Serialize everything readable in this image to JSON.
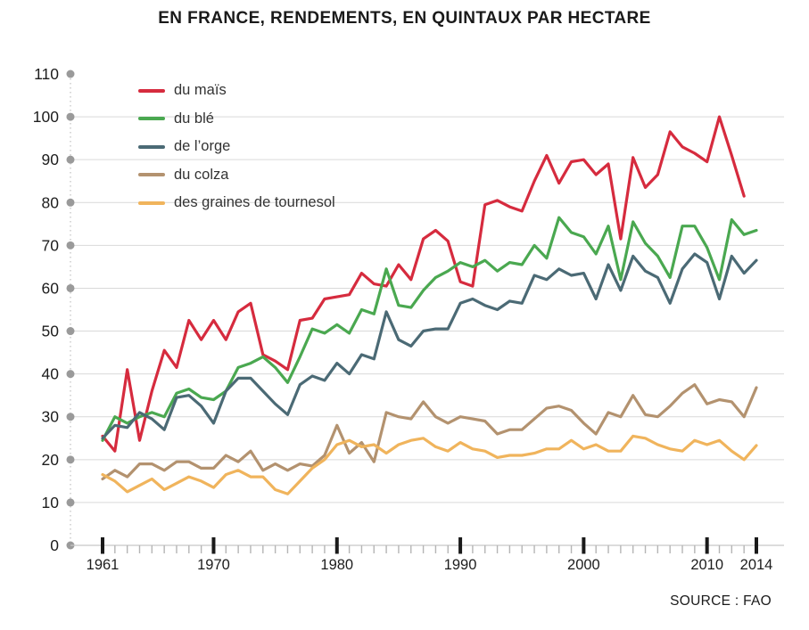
{
  "title": "EN FRANCE, RENDEMENTS, EN QUINTAUX PAR HECTARE",
  "source": "SOURCE : FAO",
  "colors": {
    "grid": "#d9d9d9",
    "axis_dot": "#9a9a9a",
    "axis_dotted_line": "#b3b3b3",
    "x_axis_line": "#c8c8c8",
    "minor_tick": "#b5b5b5",
    "major_tick": "#1a1a1a",
    "tick_label": "#1d1d1d"
  },
  "chart_data": {
    "type": "line",
    "title": "EN FRANCE, RENDEMENTS, EN QUINTAUX PAR HECTARE",
    "xlabel": "",
    "ylabel": "quintaux par hectare",
    "x_range": [
      1961,
      2014
    ],
    "x_labeled_ticks": [
      1961,
      1970,
      1980,
      1990,
      2000,
      2010,
      2014
    ],
    "y_axis": {
      "min": 0,
      "max": 110,
      "step": 10
    },
    "y_ticks": [
      0,
      10,
      20,
      30,
      40,
      50,
      60,
      70,
      80,
      90,
      100,
      110
    ],
    "grid": "horizontal",
    "legend_position": "top-left",
    "x": [
      1961,
      1962,
      1963,
      1964,
      1965,
      1966,
      1967,
      1968,
      1969,
      1970,
      1971,
      1972,
      1973,
      1974,
      1975,
      1976,
      1977,
      1978,
      1979,
      1980,
      1981,
      1982,
      1983,
      1984,
      1985,
      1986,
      1987,
      1988,
      1989,
      1990,
      1991,
      1992,
      1993,
      1994,
      1995,
      1996,
      1997,
      1998,
      1999,
      2000,
      2001,
      2002,
      2003,
      2004,
      2005,
      2006,
      2007,
      2008,
      2009,
      2010,
      2011,
      2012,
      2013,
      2014
    ],
    "series": [
      {
        "name": "du maïs",
        "color": "#d62b3e",
        "values": [
          25.5,
          22,
          41,
          24.5,
          36,
          45.5,
          41.5,
          52.5,
          48,
          52.5,
          48,
          54.5,
          56.5,
          44.5,
          43,
          41,
          52.5,
          53,
          57.5,
          58,
          58.5,
          63.5,
          61,
          60.5,
          65.5,
          62,
          71.5,
          73.5,
          71,
          61.5,
          60.5,
          79.5,
          80.5,
          79,
          78,
          85,
          91,
          84.5,
          89.5,
          90,
          86.5,
          89,
          71.5,
          90.5,
          83.5,
          86.5,
          96.5,
          93,
          91.5,
          89.5,
          100,
          91,
          81.5,
          null
        ]
      },
      {
        "name": "du blé",
        "color": "#4aa850",
        "values": [
          24.5,
          30,
          28.5,
          30,
          31,
          30,
          35.5,
          36.5,
          34.5,
          34,
          36,
          41.5,
          42.5,
          44,
          41.5,
          38,
          44,
          50.5,
          49.5,
          51.5,
          49.5,
          55,
          54,
          64.5,
          56,
          55.5,
          59.5,
          62.5,
          64,
          66,
          65,
          66.5,
          64,
          66,
          65.5,
          70,
          67,
          76.5,
          73,
          72,
          68,
          74.5,
          62,
          75.5,
          70.5,
          67.5,
          62.5,
          74.5,
          74.5,
          69.5,
          62,
          76,
          72.5,
          73.5
        ]
      },
      {
        "name": "de l’orge",
        "color": "#4b6a75",
        "values": [
          25,
          28,
          27.5,
          31,
          29.5,
          27,
          34.5,
          35,
          32.5,
          28.5,
          36,
          39,
          39,
          36,
          33,
          30.5,
          37.5,
          39.5,
          38.5,
          42.5,
          40,
          44.5,
          43.5,
          54.5,
          48,
          46.5,
          50,
          50.5,
          50.5,
          56.5,
          57.5,
          56,
          55,
          57,
          56.5,
          63,
          62,
          64.5,
          63,
          63.5,
          57.5,
          65.5,
          59.5,
          67.5,
          64,
          62.5,
          56.5,
          64.5,
          68,
          66,
          57.5,
          67.5,
          63.5,
          66.5
        ]
      },
      {
        "name": "du colza",
        "color": "#b3926f",
        "values": [
          15.5,
          17.5,
          16,
          19,
          19,
          17.5,
          19.5,
          19.5,
          18,
          18,
          21,
          19.5,
          22,
          17.5,
          19,
          17.5,
          19,
          18.5,
          21,
          28,
          21.5,
          24,
          19.5,
          31,
          30,
          29.5,
          33.5,
          30,
          28.5,
          30,
          29.5,
          29,
          26,
          27,
          27,
          29.5,
          32,
          32.5,
          31.5,
          28.5,
          26,
          31,
          30,
          35,
          30.5,
          30,
          32.5,
          35.5,
          37.5,
          33,
          34,
          33.5,
          30,
          36.8
        ]
      },
      {
        "name": "des graines de tournesol",
        "color": "#f0b45c",
        "values": [
          16.5,
          15,
          12.5,
          14,
          15.5,
          13,
          14.5,
          16,
          15,
          13.5,
          16.5,
          17.5,
          16,
          16,
          13,
          12,
          15,
          18,
          20,
          23.5,
          24.5,
          23,
          23.5,
          21.5,
          23.5,
          24.5,
          25,
          23,
          22,
          24,
          22.5,
          22,
          20.5,
          21,
          21,
          21.5,
          22.5,
          22.5,
          24.5,
          22.5,
          23.5,
          22,
          22,
          25.5,
          25,
          23.5,
          22.5,
          22,
          24.5,
          23.5,
          24.5,
          22,
          20,
          23.3
        ]
      }
    ]
  }
}
